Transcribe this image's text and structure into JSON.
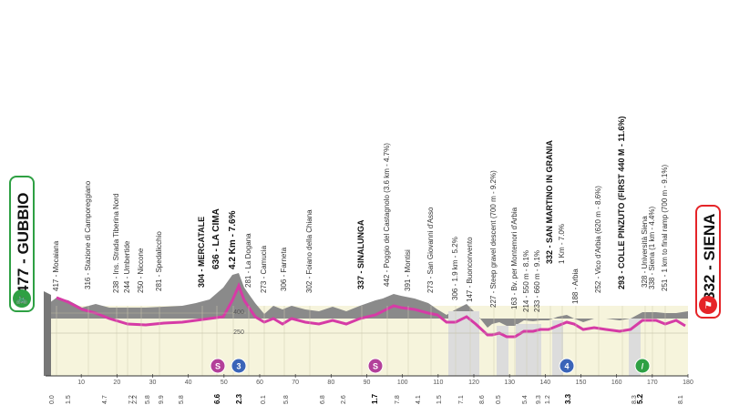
{
  "start": {
    "label": "477 - GUBBIO",
    "icon": "cyclist-icon"
  },
  "finish": {
    "label": "332 - SIENA",
    "icon": "finish-flag-icon"
  },
  "points": [
    {
      "label": "417 - Mocaiana"
    },
    {
      "label": "316 - Stazione di Campore­ggiano"
    },
    {
      "label": "238 - Ins. Strada Tiberina Nord"
    },
    {
      "label": "244 - Umbertide"
    },
    {
      "label": "250 - Niccone"
    },
    {
      "label": "281 - Spedalicchio"
    },
    {
      "label": "304 - MERCATALE"
    },
    {
      "label": "636 - LA CIMA"
    },
    {
      "label": "4.2 Km - 7.6%"
    },
    {
      "label": "281 - La Dogana"
    },
    {
      "label": "273 - Camucia"
    },
    {
      "label": "306 - Farneta"
    },
    {
      "label": "302 - Foiano della Chiana"
    },
    {
      "label": "337 - SINALUNGA"
    },
    {
      "label": "442 - Poggio del Castagnolo (3.6 km - 4.7%)"
    },
    {
      "label": "391 - Montisi"
    },
    {
      "label": "273 - San Giovanni d'Asso"
    },
    {
      "label": "306 - 1.9 km - 5.2%"
    },
    {
      "label": "147 - Buonconvento"
    },
    {
      "label": "227 - Steep gravel descent (700 m - 9.2%)"
    },
    {
      "label": "163 - Bv. per Montemori d'Arbia"
    },
    {
      "label": "214 - 550 m - 8.1%"
    },
    {
      "label": "233 - 660 m - 9.1%"
    },
    {
      "label": "332 - SAN MARTINO IN GRANIA"
    },
    {
      "label": "1 Km - 7.0%"
    },
    {
      "label": "188 - Arbia"
    },
    {
      "label": "252 - Vico d'Arbia (620 m - 8.6%)"
    },
    {
      "label": "293 - COLLE PINZUTO (FIRST 440 M - 11.6%)"
    },
    {
      "label": "328 - Università Siena"
    },
    {
      "label": "338 - Siena (1 km - 4.4%)"
    },
    {
      "label": "251 - 1 km to final ramp (700 m - 9.1%)"
    }
  ],
  "km_marks": [
    "0.0",
    "1.5",
    "4.7",
    "7.2",
    "2.2",
    "5.8",
    "9.9",
    "5.8",
    "6.6",
    "2.3",
    "0.1",
    "5.8",
    "6.8",
    "2.6",
    "1.7",
    "7.8",
    "4.1",
    "1.5",
    "7.1",
    "8.6",
    "0.5",
    "5.4",
    "9.3",
    "1.2",
    "3.3",
    "8.3",
    "5.2",
    "8.1"
  ],
  "axis_ticks": [
    "10",
    "20",
    "30",
    "40",
    "50",
    "60",
    "70",
    "80",
    "90",
    "100",
    "110",
    "120",
    "130",
    "140",
    "150",
    "160",
    "170",
    "180"
  ],
  "elevation_lines": [
    "400",
    "250"
  ],
  "markers": [
    {
      "label": "S",
      "color": "#b3409a"
    },
    {
      "label": "3",
      "color": "#3a64b8"
    },
    {
      "label": "S",
      "color": "#b3409a"
    },
    {
      "label": "4",
      "color": "#3a64b8"
    },
    {
      "label": "/",
      "color": "#2ea043"
    }
  ],
  "colors": {
    "route": "#d63ba6",
    "asphalt": "#888888",
    "gravel": "#dcdcdc",
    "plain": "#f6f4dc",
    "start_green": "#2ea043",
    "finish_red": "#e52428"
  }
}
